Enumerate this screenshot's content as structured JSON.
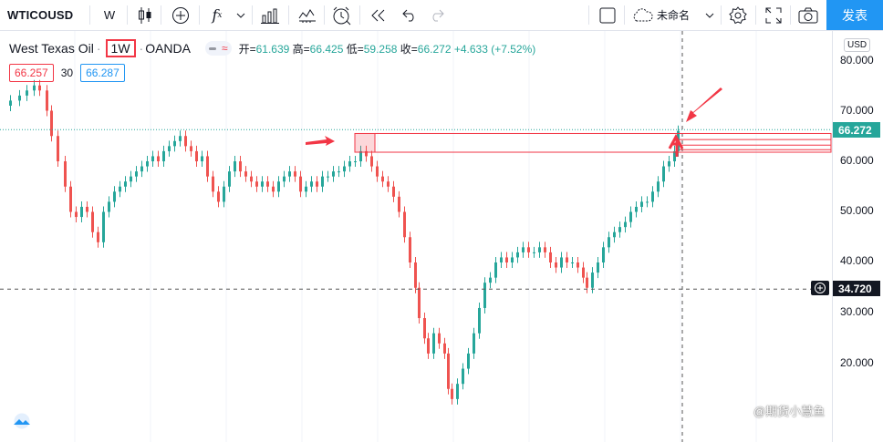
{
  "toolbar": {
    "symbol": "WTICOUSD",
    "interval": "W",
    "layout_name": "未命名",
    "publish_label": "发表",
    "icons": [
      "candles-icon",
      "add-compare-icon",
      "indicators-fx-icon",
      "dropdown-chevron-icon",
      "financials-bars-icon",
      "templates-icon",
      "alert-clock-icon",
      "replay-icon",
      "undo-icon",
      "redo-icon",
      "checkbox-icon",
      "cloud-icon",
      "chevron-down-icon",
      "settings-gear-icon",
      "fullscreen-icon",
      "camera-icon"
    ]
  },
  "legend": {
    "title": "West Texas Oil",
    "timeframe": "1W",
    "source": "OANDA",
    "open_label": "开=",
    "open": "61.639",
    "high_label": "高=",
    "high": "66.425",
    "low_label": "低=",
    "low": "59.258",
    "close_label": "收=",
    "close": "66.272",
    "change": "+4.633 (+7.52%)"
  },
  "bid": "66.257",
  "spread": "30",
  "ask": "66.287",
  "price_axis": {
    "currency": "USD",
    "ticks": [
      "80.000",
      "70.000",
      "60.000",
      "50.000",
      "40.000",
      "30.000",
      "20.000"
    ],
    "last_price": "66.272",
    "crosshair_price": "34.720"
  },
  "colors": {
    "up": "#26a69a",
    "down": "#ef5350",
    "annotation": "#f23645",
    "accent": "#2196f3"
  },
  "watermark": "@期货小慧鱼"
}
